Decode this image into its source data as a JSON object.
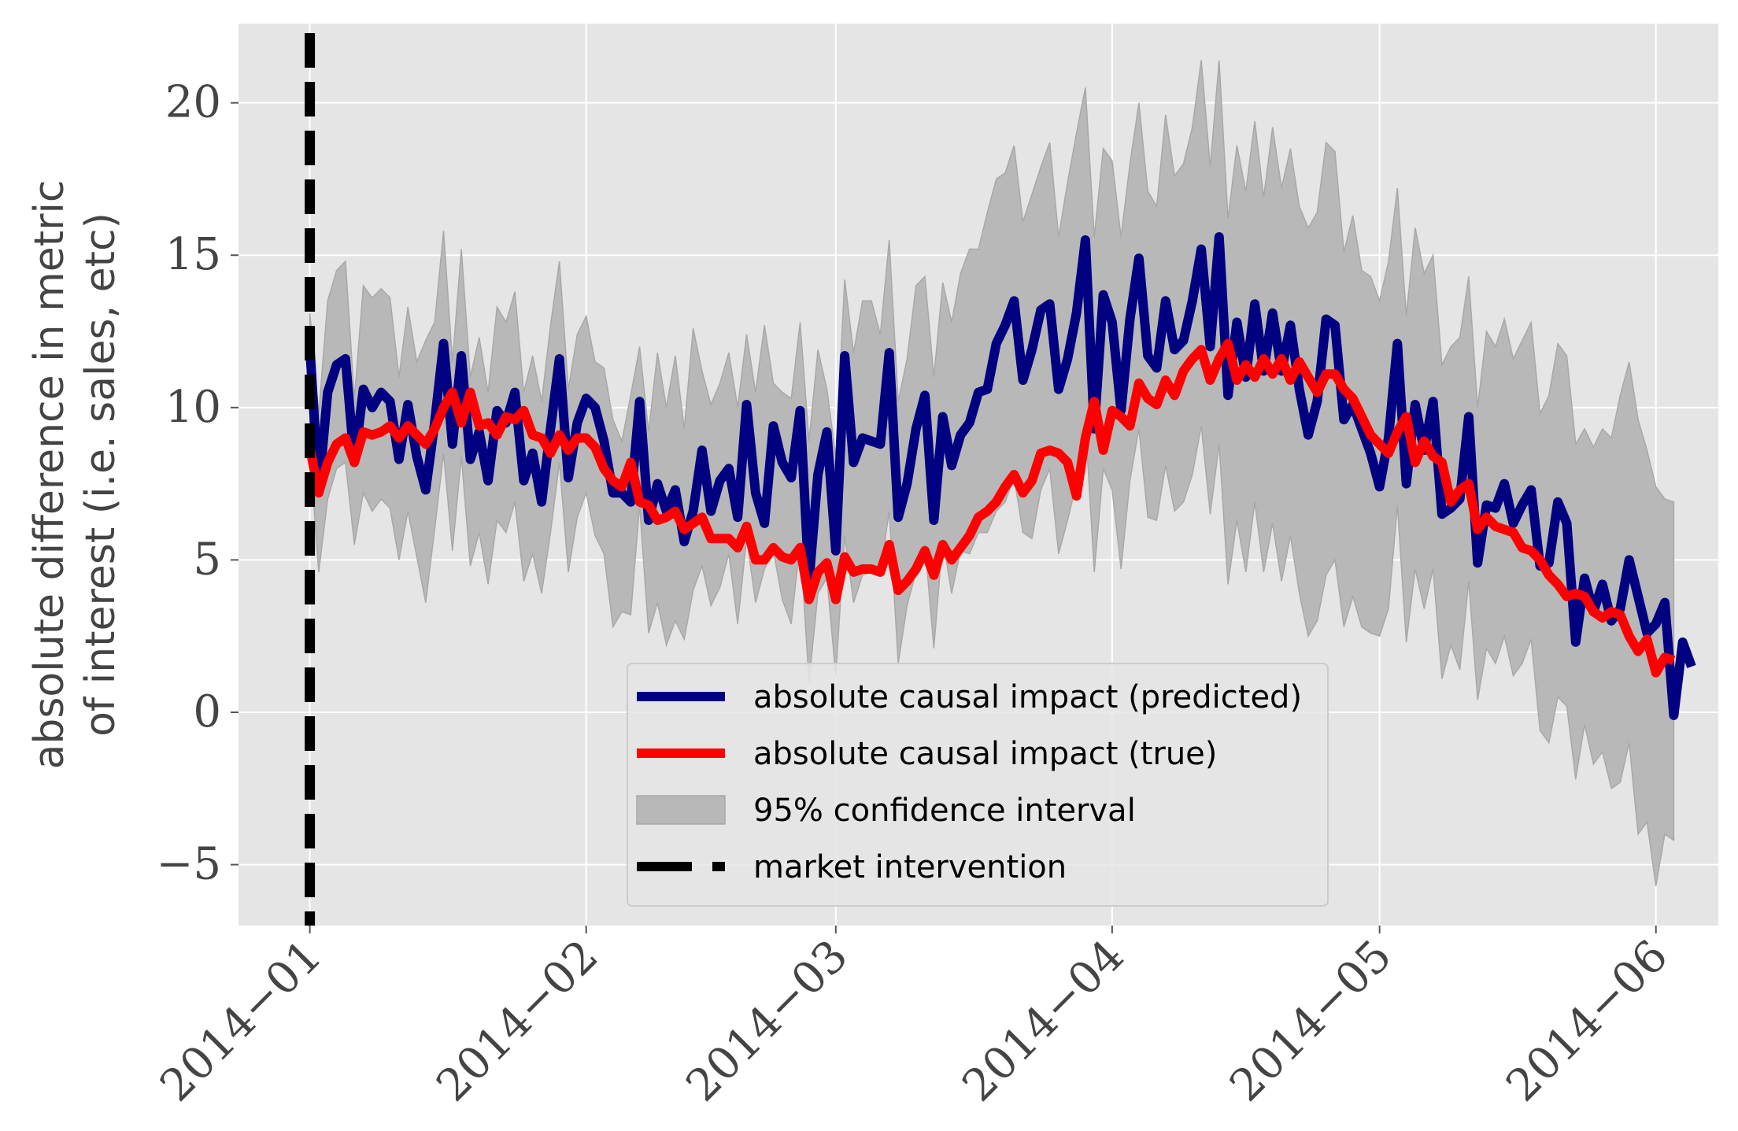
{
  "chart_data": {
    "type": "line",
    "ylabel_lines": [
      "absolute difference in metric",
      "of interest (i.e. sales, etc)"
    ],
    "xlabel": "",
    "ylim": [
      -7.0,
      22.6
    ],
    "yticks": [
      -5,
      0,
      5,
      10,
      15,
      20
    ],
    "ytick_labels": [
      "−5",
      "0",
      "5",
      "10",
      "15",
      "20"
    ],
    "xlim": [
      "2013-12-24",
      "2014-06-08"
    ],
    "xticks": [
      "2014-01-01",
      "2014-02-01",
      "2014-03-01",
      "2014-04-01",
      "2014-05-01",
      "2014-06-01"
    ],
    "xtick_labels": [
      "2014−01",
      "2014−02",
      "2014−03",
      "2014−04",
      "2014−05",
      "2014−06"
    ],
    "grid": true,
    "legend_position": "lower-center",
    "intervention_date": "2014-01-01",
    "colors": {
      "predicted": "#000080",
      "true": "#ff0000",
      "ci_fill": "#b8b8b8",
      "intervention": "#000000",
      "background": "#e5e5e5"
    },
    "series": [
      {
        "name": "absolute causal impact (predicted)",
        "color": "#000080",
        "x_start": "2014-01-01",
        "x_step_days": 1,
        "values": [
          12.0,
          7.3,
          10.5,
          11.4,
          11.6,
          8.2,
          10.6,
          10.0,
          10.5,
          10.2,
          8.3,
          10.1,
          8.4,
          7.3,
          9.5,
          12.1,
          8.8,
          11.7,
          8.3,
          9.2,
          7.6,
          9.9,
          9.5,
          10.5,
          7.6,
          8.5,
          6.9,
          9.3,
          11.6,
          7.7,
          9.5,
          10.3,
          10.0,
          8.9,
          7.2,
          7.2,
          6.9,
          10.2,
          6.3,
          7.5,
          6.6,
          7.3,
          5.6,
          6.6,
          8.6,
          6.6,
          7.6,
          8.0,
          6.4,
          10.1,
          7.2,
          6.2,
          9.4,
          8.2,
          7.7,
          9.9,
          4.3,
          7.8,
          9.2,
          5.3,
          11.7,
          8.2,
          9.0,
          8.9,
          8.8,
          11.8,
          6.4,
          7.5,
          9.3,
          10.4,
          6.3,
          9.7,
          8.1,
          9.1,
          9.5,
          10.5,
          10.6,
          12.1,
          12.7,
          13.5,
          10.9,
          11.9,
          13.2,
          13.4,
          10.6,
          11.6,
          13.1,
          15.5,
          9.3,
          13.7,
          12.8,
          9.9,
          12.9,
          14.9,
          11.7,
          11.3,
          13.5,
          11.9,
          12.2,
          13.5,
          15.2,
          12.0,
          15.6,
          10.4,
          12.8,
          11.0,
          13.4,
          11.2,
          13.1,
          11.2,
          12.7,
          10.6,
          9.1,
          10.2,
          12.9,
          12.7,
          9.6,
          10.1,
          9.3,
          8.5,
          7.4,
          9.0,
          12.1,
          7.5,
          10.1,
          8.6,
          10.2,
          6.5,
          6.7,
          7.0,
          9.7,
          4.9,
          6.8,
          6.7,
          7.5,
          6.2,
          6.8,
          7.3,
          4.8,
          4.9,
          6.9,
          6.2,
          2.3,
          4.4,
          3.3,
          4.2,
          3.0,
          3.4,
          5.0,
          3.8,
          2.6,
          2.9,
          3.6,
          -0.1,
          2.3,
          1.5
        ]
      },
      {
        "name": "absolute causal impact (true)",
        "color": "#ff0000",
        "x_start": "2014-01-01",
        "x_step_days": 1,
        "values": [
          8.7,
          7.2,
          8.2,
          8.8,
          9.0,
          8.2,
          9.2,
          9.1,
          9.2,
          9.4,
          9.0,
          9.4,
          9.1,
          8.8,
          9.3,
          10.0,
          10.5,
          9.5,
          10.5,
          9.4,
          9.5,
          9.1,
          9.7,
          9.6,
          9.9,
          9.1,
          9.0,
          8.5,
          9.1,
          8.6,
          9.0,
          9.0,
          8.7,
          8.0,
          7.6,
          7.4,
          8.2,
          6.9,
          6.8,
          6.3,
          6.4,
          6.6,
          6.0,
          6.2,
          6.4,
          5.7,
          5.7,
          5.7,
          5.4,
          6.1,
          5.0,
          5.0,
          5.4,
          5.1,
          5.0,
          5.4,
          3.7,
          4.6,
          4.9,
          3.7,
          5.1,
          4.6,
          4.7,
          4.7,
          4.6,
          5.5,
          4.0,
          4.3,
          4.7,
          5.3,
          4.5,
          5.5,
          5.0,
          5.4,
          5.8,
          6.4,
          6.6,
          6.9,
          7.4,
          7.8,
          7.2,
          7.6,
          8.5,
          8.6,
          8.5,
          8.2,
          7.1,
          9.0,
          10.2,
          8.6,
          9.9,
          9.7,
          9.4,
          10.8,
          10.3,
          10.1,
          10.9,
          10.4,
          11.2,
          11.6,
          11.9,
          10.9,
          11.6,
          12.1,
          10.9,
          11.4,
          11.0,
          11.6,
          11.1,
          11.6,
          10.9,
          11.5,
          11.0,
          10.5,
          11.1,
          11.1,
          10.6,
          10.3,
          9.7,
          9.1,
          8.8,
          8.5,
          9.2,
          9.7,
          8.2,
          8.9,
          8.4,
          8.2,
          6.9,
          7.3,
          7.5,
          6.0,
          6.4,
          6.1,
          6.0,
          5.9,
          5.4,
          5.3,
          5.0,
          4.5,
          4.2,
          3.8,
          3.9,
          3.8,
          3.3,
          3.1,
          3.3,
          3.2,
          2.5,
          2.0,
          2.4,
          1.3,
          1.8,
          1.7
        ]
      }
    ],
    "ci_name": "95% confidence interval",
    "ci_upper": [
      13.1,
      9.8,
      13.5,
      14.5,
      14.8,
      10.3,
      14.0,
      13.6,
      13.9,
      13.6,
      11.0,
      13.3,
      11.5,
      12.2,
      12.8,
      15.8,
      11.5,
      15.2,
      11.0,
      12.3,
      10.5,
      13.3,
      12.8,
      13.8,
      10.5,
      11.7,
      10.2,
      12.7,
      14.8,
      10.6,
      12.4,
      13.0,
      11.5,
      11.3,
      9.6,
      8.9,
      10.4,
      12.0,
      9.2,
      11.8,
      10.0,
      11.7,
      9.3,
      12.6,
      11.2,
      10.1,
      10.8,
      11.8,
      10.0,
      12.4,
      10.5,
      12.7,
      10.8,
      10.5,
      10.3,
      12.8,
      8.9,
      11.9,
      10.6,
      8.4,
      14.2,
      11.8,
      13.5,
      13.5,
      12.4,
      15.5,
      10.2,
      11.6,
      14.0,
      14.3,
      11.0,
      14.1,
      12.8,
      14.4,
      15.2,
      15.2,
      16.4,
      17.5,
      17.7,
      18.6,
      16.1,
      17.0,
      17.9,
      18.7,
      15.6,
      17.4,
      19.0,
      20.5,
      15.6,
      18.5,
      18.1,
      15.6,
      18.0,
      20.0,
      17.1,
      16.6,
      19.6,
      17.6,
      18.0,
      19.2,
      21.4,
      17.9,
      21.4,
      16.2,
      18.6,
      17.1,
      19.4,
      16.9,
      19.2,
      17.2,
      18.5,
      16.6,
      15.9,
      16.4,
      18.7,
      18.4,
      15.1,
      16.3,
      14.5,
      14.3,
      13.5,
      14.8,
      17.2,
      13.0,
      15.9,
      14.4,
      15.0,
      11.4,
      12.0,
      12.3,
      14.3,
      10.0,
      12.5,
      12.0,
      12.9,
      11.6,
      12.2,
      12.8,
      9.8,
      10.4,
      12.1,
      11.7,
      8.8,
      9.3,
      8.7,
      9.3,
      9.0,
      10.4,
      11.5,
      9.6,
      8.6,
      7.4,
      7.0,
      6.9
    ],
    "ci_lower": [
      8.6,
      4.6,
      7.0,
      8.0,
      8.2,
      5.5,
      7.2,
      6.6,
      7.0,
      6.7,
      5.0,
      6.6,
      5.1,
      3.6,
      6.0,
      8.5,
      5.3,
      8.4,
      4.8,
      5.9,
      4.2,
      6.3,
      5.9,
      6.9,
      4.3,
      5.2,
      3.9,
      5.9,
      8.2,
      4.6,
      6.4,
      7.2,
      5.8,
      5.2,
      2.8,
      3.3,
      3.2,
      6.8,
      2.6,
      3.6,
      2.2,
      3.0,
      2.4,
      4.0,
      4.8,
      3.5,
      4.1,
      5.2,
      2.9,
      5.7,
      3.6,
      4.7,
      5.3,
      3.7,
      2.9,
      5.6,
      1.0,
      3.9,
      4.4,
      1.2,
      5.8,
      3.6,
      4.5,
      4.6,
      4.6,
      6.6,
      1.6,
      3.5,
      4.6,
      5.5,
      2.1,
      5.7,
      3.9,
      5.3,
      5.2,
      5.9,
      5.9,
      6.6,
      6.9,
      7.7,
      5.9,
      5.7,
      7.3,
      8.0,
      5.2,
      6.3,
      7.5,
      9.5,
      4.6,
      8.0,
      7.3,
      4.7,
      7.6,
      9.3,
      6.4,
      6.3,
      8.1,
      6.6,
      6.9,
      7.8,
      9.4,
      6.5,
      8.8,
      4.2,
      6.3,
      4.6,
      6.9,
      4.6,
      6.2,
      4.3,
      5.8,
      3.9,
      2.5,
      3.0,
      4.5,
      5.0,
      2.8,
      3.8,
      2.8,
      2.6,
      2.5,
      3.4,
      6.8,
      2.3,
      4.7,
      3.4,
      4.7,
      1.1,
      2.2,
      1.4,
      4.3,
      0.4,
      2.1,
      1.6,
      2.5,
      1.2,
      1.6,
      2.4,
      -0.6,
      -1.0,
      0.5,
      0.2,
      -2.2,
      -0.4,
      -1.7,
      -1.3,
      -2.5,
      -2.3,
      -1.0,
      -4.0,
      -3.6,
      -5.7,
      -4.0,
      -4.2
    ]
  },
  "legend": {
    "items": [
      {
        "label": "absolute causal impact (predicted)",
        "kind": "line",
        "color": "#000080"
      },
      {
        "label": "absolute causal impact (true)",
        "kind": "line",
        "color": "#ff0000"
      },
      {
        "label": "95% confidence interval",
        "kind": "patch",
        "color": "#b8b8b8"
      },
      {
        "label": "market intervention",
        "kind": "dashed",
        "color": "#000000"
      }
    ]
  }
}
